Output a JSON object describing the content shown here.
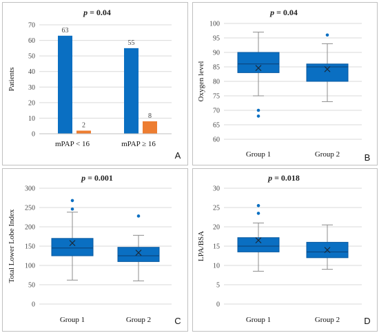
{
  "colors": {
    "primary": "#0a6fc2",
    "secondary": "#ed7d31",
    "border": "#bfbfbf",
    "grid": "#d9d9d9",
    "whisker": "#8c8c8c"
  },
  "chart_data": [
    {
      "panel": "A",
      "type": "bar",
      "title": "p = 0.04",
      "title_p": "p",
      "title_rest": " = 0.04",
      "ylabel": "Patients",
      "ylim": [
        0,
        70
      ],
      "yticks": [
        0,
        10,
        20,
        30,
        40,
        50,
        60,
        70
      ],
      "categories": [
        "mPAP < 16",
        "mPAP ≥ 16"
      ],
      "series": [
        {
          "values": [
            63,
            55
          ],
          "color": "#0a6fc2"
        },
        {
          "values": [
            2,
            8
          ],
          "color": "#ed7d31"
        }
      ],
      "grid": true
    },
    {
      "panel": "B",
      "type": "box",
      "title": "p = 0.04",
      "title_p": "p",
      "title_rest": " = 0.04",
      "ylabel": "Oxygen level",
      "ylim": [
        60,
        100
      ],
      "yticks": [
        60,
        65,
        70,
        75,
        80,
        85,
        90,
        95,
        100
      ],
      "categories": [
        "Group 1",
        "Group 2"
      ],
      "boxes": [
        {
          "min": 75,
          "q1": 83,
          "median": 86,
          "q3": 90,
          "max": 97,
          "mean": 84.6,
          "outliers": [
            70,
            68
          ]
        },
        {
          "min": 73,
          "q1": 80,
          "median": 85,
          "q3": 86,
          "max": 93,
          "mean": 84.2,
          "outliers": [
            96
          ]
        }
      ],
      "grid": true
    },
    {
      "panel": "C",
      "type": "box",
      "title": "p = 0.001",
      "title_p": "p",
      "title_rest": " = 0.001",
      "ylabel": "Total Lower Lobe Index",
      "ylim": [
        0,
        300
      ],
      "yticks": [
        0,
        50,
        100,
        150,
        200,
        250,
        300
      ],
      "categories": [
        "Group 1",
        "Group 2"
      ],
      "boxes": [
        {
          "min": 62,
          "q1": 125,
          "median": 145,
          "q3": 170,
          "max": 238,
          "mean": 158,
          "outliers": [
            268,
            246
          ]
        },
        {
          "min": 60,
          "q1": 110,
          "median": 125,
          "q3": 147,
          "max": 178,
          "mean": 133,
          "outliers": [
            228
          ]
        }
      ],
      "grid": true
    },
    {
      "panel": "D",
      "type": "box",
      "title": "p = 0.018",
      "title_p": "p",
      "title_rest": " = 0.018",
      "ylabel": "LPA/BSA",
      "ylim": [
        0,
        30
      ],
      "yticks": [
        0,
        5,
        10,
        15,
        20,
        25,
        30
      ],
      "categories": [
        "Group 1",
        "Group 2"
      ],
      "boxes": [
        {
          "min": 8.5,
          "q1": 13.5,
          "median": 15,
          "q3": 17.2,
          "max": 21,
          "mean": 16.5,
          "outliers": [
            25.5,
            23.5
          ]
        },
        {
          "min": 9,
          "q1": 12,
          "median": 13.5,
          "q3": 16,
          "max": 20.5,
          "mean": 14,
          "outliers": []
        }
      ],
      "grid": true
    }
  ]
}
